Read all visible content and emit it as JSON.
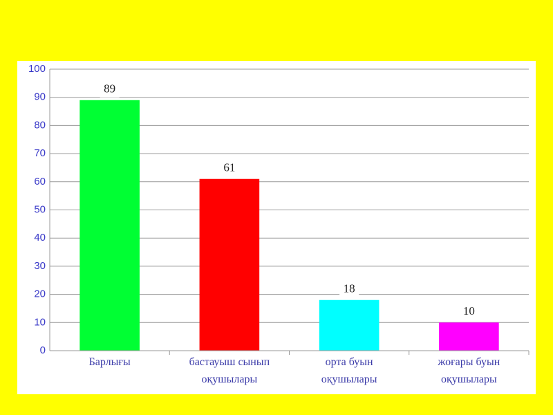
{
  "chart_data": {
    "type": "bar",
    "categories": [
      "Барлығы",
      "бастауыш сынып\nоқушылары",
      "орта буын\nоқушылары",
      "жоғары буын\nоқушылары"
    ],
    "values": [
      89,
      61,
      18,
      10
    ],
    "colors": [
      "#00ff33",
      "#ff0000",
      "#00ffff",
      "#ff00ff"
    ],
    "ylim": [
      0,
      100
    ],
    "yticks": [
      0,
      10,
      20,
      30,
      40,
      50,
      60,
      70,
      80,
      90,
      100
    ],
    "grid": true
  }
}
